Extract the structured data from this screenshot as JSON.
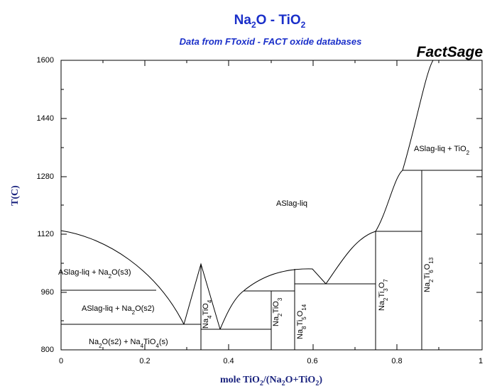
{
  "title": {
    "main": "Na",
    "sub1": "2",
    "mid": "O - TiO",
    "sub2": "2"
  },
  "subtitle": "Data from FToxid - FACT oxide databases",
  "brand": "FactSage",
  "axes": {
    "ylabel": "T(C)",
    "xlabel": {
      "a": "mole TiO",
      "a_sub": "2",
      "b": "/(Na",
      "b_sub": "2",
      "c": "O+TiO",
      "c_sub": "2",
      "d": ")"
    },
    "yticks": [
      "1600",
      "1440",
      "1280",
      "1120",
      "960",
      "800"
    ],
    "xticks": [
      "0",
      "0.2",
      "0.4",
      "0.6",
      "0.8",
      "1"
    ]
  },
  "regions": {
    "liquid": "ASlag-liq",
    "liq_tio2": "ASlag-liq + TiO",
    "liq_tio2_sub": "2",
    "liq_na2o_s3": "ASlag-liq + Na",
    "liq_na2o_s3_sub": "2",
    "liq_na2o_s3_end": "O(s3)",
    "liq_na2o_s2": "ASlag-liq + Na",
    "liq_na2o_s2_sub": "2",
    "liq_na2o_s2_end": "O(s2)",
    "solid_bottom": {
      "a": "Na",
      "a_sub": "2",
      "b": "O(s2) + Na",
      "b_sub": "4",
      "c": "TiO",
      "c_sub": "4",
      "d": "(s)"
    }
  },
  "compounds": [
    {
      "name": "Na4TiO4",
      "parts": [
        "Na",
        "4",
        "TiO",
        "4"
      ]
    },
    {
      "name": "Na2TiO3",
      "parts": [
        "Na",
        "2",
        "TiO",
        "3"
      ]
    },
    {
      "name": "Na8Ti5O14",
      "parts": [
        "Na",
        "8",
        "Ti",
        "5",
        "O",
        "14"
      ]
    },
    {
      "name": "Na2Ti3O7",
      "parts": [
        "Na",
        "2",
        "Ti",
        "3",
        "O",
        "7"
      ]
    },
    {
      "name": "Na2Ti6O13",
      "parts": [
        "Na",
        "2",
        "Ti",
        "6",
        "O",
        "13"
      ]
    }
  ],
  "colors": {
    "title": "#1a2fc9",
    "axis_label": "#1a237e",
    "lines": "#000000"
  }
}
